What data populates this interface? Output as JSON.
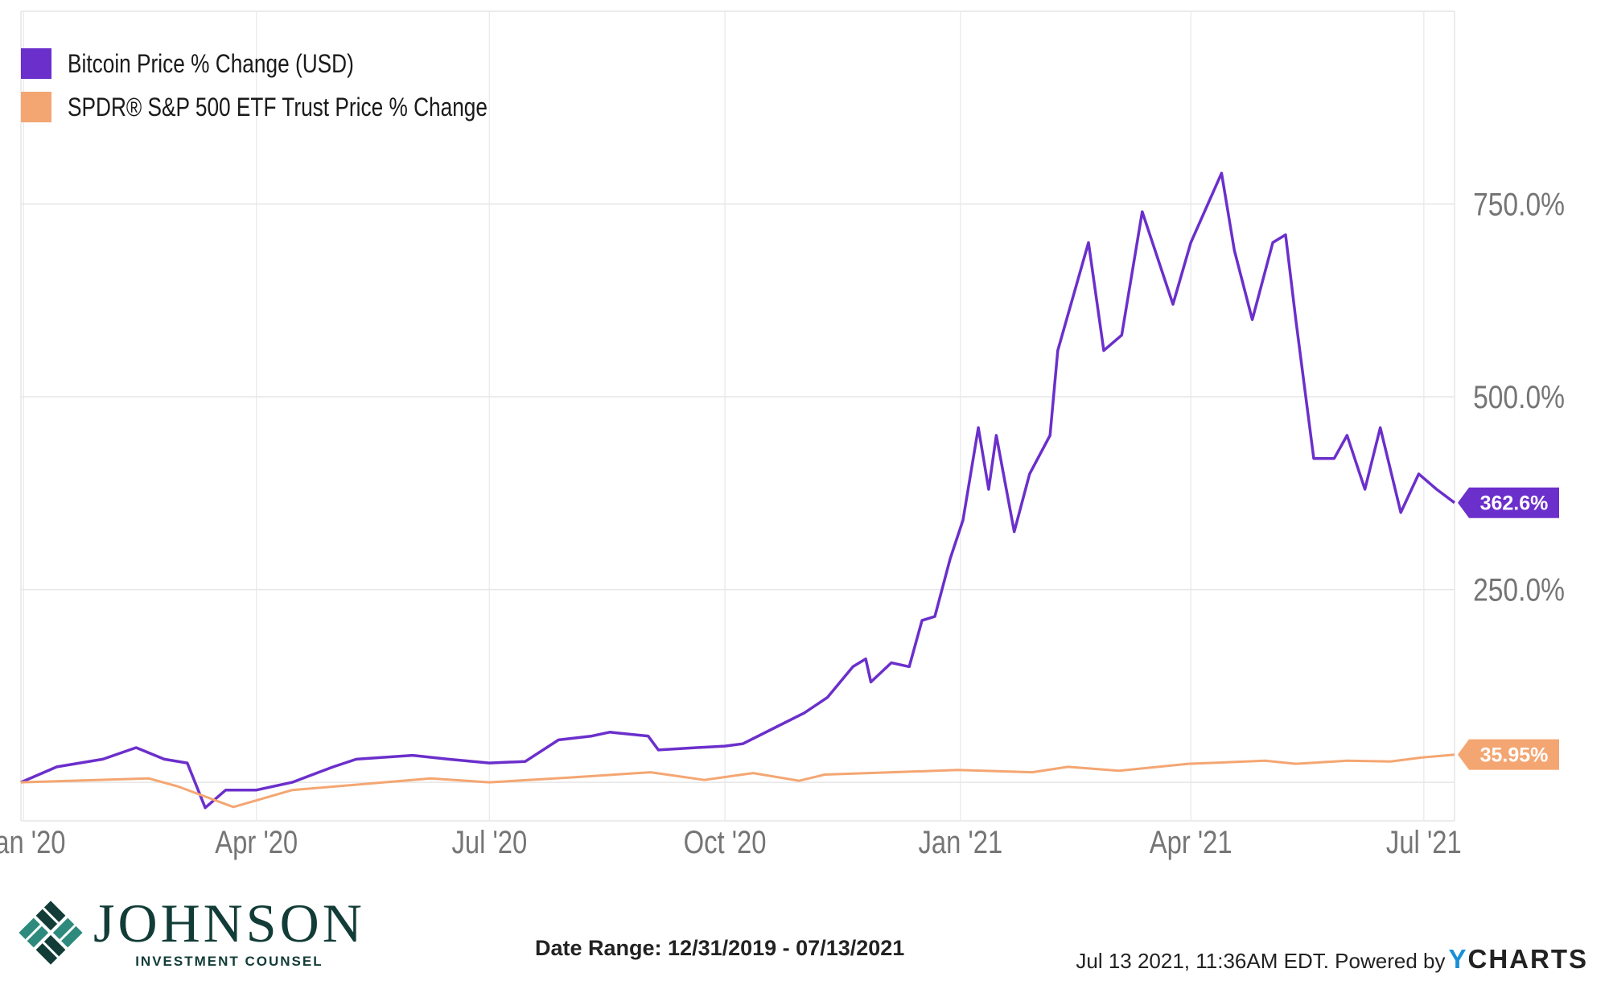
{
  "legend": [
    {
      "label": "Bitcoin Price % Change (USD)",
      "color": "#6b2fcb"
    },
    {
      "label": "SPDR® S&P 500 ETF Trust Price % Change",
      "color": "#f4a672"
    }
  ],
  "footer": {
    "logo_name": "JOHNSON",
    "logo_sub": "INVESTMENT COUNSEL",
    "date_range": "Date Range: 12/31/2019 - 07/13/2021",
    "timestamp": "Jul 13 2021, 11:36AM EDT. Powered by",
    "brand_y": "Y",
    "brand_rest": "CHARTS"
  },
  "chart_data": {
    "type": "line",
    "x_ticks": [
      "Jan '20",
      "Apr '20",
      "Jul '20",
      "Oct '20",
      "Jan '21",
      "Apr '21",
      "Jul '21"
    ],
    "y_ticks": [
      "250.0%",
      "500.0%",
      "750.0%"
    ],
    "ylim": [
      -50,
      1000
    ],
    "grid": true,
    "legend_position": "top-left",
    "series": [
      {
        "name": "Bitcoin Price % Change (USD)",
        "color": "#6b2fcb",
        "end_label": "362.6%",
        "points": [
          [
            "2019-12-31",
            0
          ],
          [
            "2020-01-14",
            20
          ],
          [
            "2020-02-01",
            30
          ],
          [
            "2020-02-14",
            45
          ],
          [
            "2020-02-25",
            30
          ],
          [
            "2020-03-05",
            25
          ],
          [
            "2020-03-12",
            -33
          ],
          [
            "2020-03-20",
            -10
          ],
          [
            "2020-04-01",
            -10
          ],
          [
            "2020-04-15",
            0
          ],
          [
            "2020-05-01",
            20
          ],
          [
            "2020-05-10",
            30
          ],
          [
            "2020-06-01",
            35
          ],
          [
            "2020-06-15",
            30
          ],
          [
            "2020-07-01",
            25
          ],
          [
            "2020-07-15",
            27
          ],
          [
            "2020-07-28",
            55
          ],
          [
            "2020-08-10",
            60
          ],
          [
            "2020-08-17",
            65
          ],
          [
            "2020-09-01",
            60
          ],
          [
            "2020-09-05",
            42
          ],
          [
            "2020-09-20",
            45
          ],
          [
            "2020-10-01",
            47
          ],
          [
            "2020-10-08",
            50
          ],
          [
            "2020-10-20",
            70
          ],
          [
            "2020-11-01",
            90
          ],
          [
            "2020-11-10",
            110
          ],
          [
            "2020-11-20",
            150
          ],
          [
            "2020-11-25",
            160
          ],
          [
            "2020-11-27",
            130
          ],
          [
            "2020-12-05",
            155
          ],
          [
            "2020-12-12",
            150
          ],
          [
            "2020-12-17",
            210
          ],
          [
            "2020-12-22",
            215
          ],
          [
            "2020-12-28",
            290
          ],
          [
            "2021-01-02",
            340
          ],
          [
            "2021-01-08",
            460
          ],
          [
            "2021-01-12",
            380
          ],
          [
            "2021-01-15",
            450
          ],
          [
            "2021-01-22",
            325
          ],
          [
            "2021-01-28",
            400
          ],
          [
            "2021-02-05",
            450
          ],
          [
            "2021-02-08",
            560
          ],
          [
            "2021-02-20",
            700
          ],
          [
            "2021-02-26",
            560
          ],
          [
            "2021-03-05",
            580
          ],
          [
            "2021-03-13",
            740
          ],
          [
            "2021-03-25",
            620
          ],
          [
            "2021-04-01",
            700
          ],
          [
            "2021-04-13",
            790
          ],
          [
            "2021-04-18",
            690
          ],
          [
            "2021-04-25",
            600
          ],
          [
            "2021-05-03",
            700
          ],
          [
            "2021-05-08",
            710
          ],
          [
            "2021-05-12",
            600
          ],
          [
            "2021-05-19",
            420
          ],
          [
            "2021-05-27",
            420
          ],
          [
            "2021-06-01",
            450
          ],
          [
            "2021-06-08",
            380
          ],
          [
            "2021-06-14",
            460
          ],
          [
            "2021-06-22",
            350
          ],
          [
            "2021-06-29",
            400
          ],
          [
            "2021-07-06",
            380
          ],
          [
            "2021-07-13",
            362.6
          ]
        ]
      },
      {
        "name": "SPDR® S&P 500 ETF Trust Price % Change",
        "color": "#f4a672",
        "end_label": "35.95%",
        "points": [
          [
            "2019-12-31",
            0
          ],
          [
            "2020-02-19",
            5
          ],
          [
            "2020-03-01",
            -5
          ],
          [
            "2020-03-23",
            -32
          ],
          [
            "2020-04-15",
            -10
          ],
          [
            "2020-06-08",
            5
          ],
          [
            "2020-07-01",
            0
          ],
          [
            "2020-08-01",
            6
          ],
          [
            "2020-09-02",
            13
          ],
          [
            "2020-09-23",
            3
          ],
          [
            "2020-10-12",
            12
          ],
          [
            "2020-10-30",
            2
          ],
          [
            "2020-11-09",
            10
          ],
          [
            "2020-12-31",
            16
          ],
          [
            "2021-01-29",
            13
          ],
          [
            "2021-02-12",
            20
          ],
          [
            "2021-03-04",
            15
          ],
          [
            "2021-03-31",
            24
          ],
          [
            "2021-04-30",
            28
          ],
          [
            "2021-05-12",
            24
          ],
          [
            "2021-06-01",
            28
          ],
          [
            "2021-06-18",
            27
          ],
          [
            "2021-06-30",
            32
          ],
          [
            "2021-07-13",
            35.95
          ]
        ]
      }
    ]
  }
}
